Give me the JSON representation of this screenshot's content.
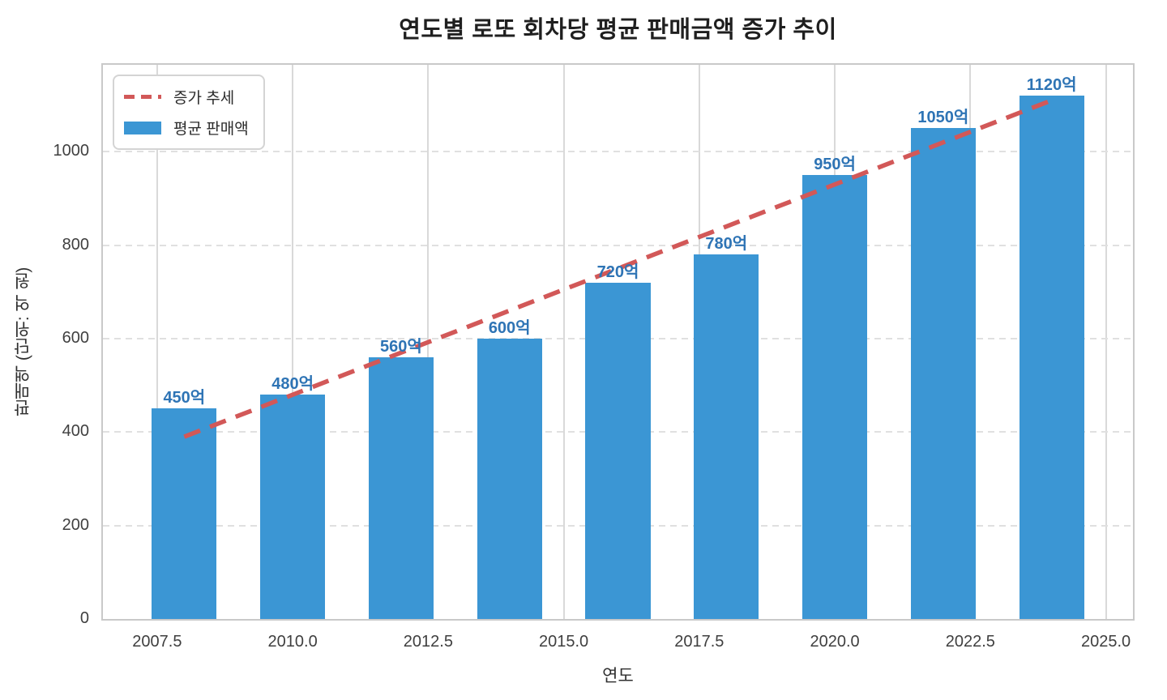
{
  "chart_data": {
    "type": "bar",
    "title": "연도별 로또 회차당 평균 판매금액 증가 추이",
    "xlabel": "연도",
    "ylabel": "판매액 (단위: 억 원)",
    "x": [
      2008,
      2010,
      2012,
      2014,
      2016,
      2018,
      2020,
      2022,
      2024
    ],
    "values": [
      450,
      480,
      560,
      600,
      720,
      780,
      950,
      1050,
      1120
    ],
    "bar_labels": [
      "450억",
      "480억",
      "560억",
      "600억",
      "720억",
      "780억",
      "950억",
      "1050억",
      "1120억"
    ],
    "bar_width_years": 1.2,
    "x_ticks": [
      2007.5,
      2010.0,
      2012.5,
      2015.0,
      2017.5,
      2020.0,
      2022.5,
      2025.0
    ],
    "x_tick_labels": [
      "2007.5",
      "2010.0",
      "2012.5",
      "2015.0",
      "2017.5",
      "2020.0",
      "2022.5",
      "2025.0"
    ],
    "y_ticks": [
      0,
      200,
      400,
      600,
      800,
      1000
    ],
    "y_tick_labels": [
      "0",
      "200",
      "400",
      "600",
      "800",
      "1000"
    ],
    "xlim": [
      2006.5,
      2025.5
    ],
    "ylim": [
      0,
      1186
    ],
    "grid": {
      "horizontal": "dashed",
      "vertical": "solid",
      "on": true
    },
    "trend_line": {
      "x": [
        2008,
        2024
      ],
      "y": [
        390,
        1110
      ],
      "style": "dashed"
    },
    "legend": {
      "position": "upper-left",
      "items": [
        {
          "label": "증가 추세",
          "type": "dashed-line",
          "color": "#d25858"
        },
        {
          "label": "평균 판매액",
          "type": "bar-swatch",
          "color": "#3b96d4"
        }
      ]
    },
    "colors": {
      "bar": "#3b96d4",
      "bar_label": "#2e74b5",
      "trend": "#d25858",
      "grid_h": "#e0e0e0",
      "grid_v": "#d9d9d9",
      "spine": "#c9c9c9",
      "tick_text": "#3f3f3f",
      "title_text": "#1f1f1f"
    }
  }
}
